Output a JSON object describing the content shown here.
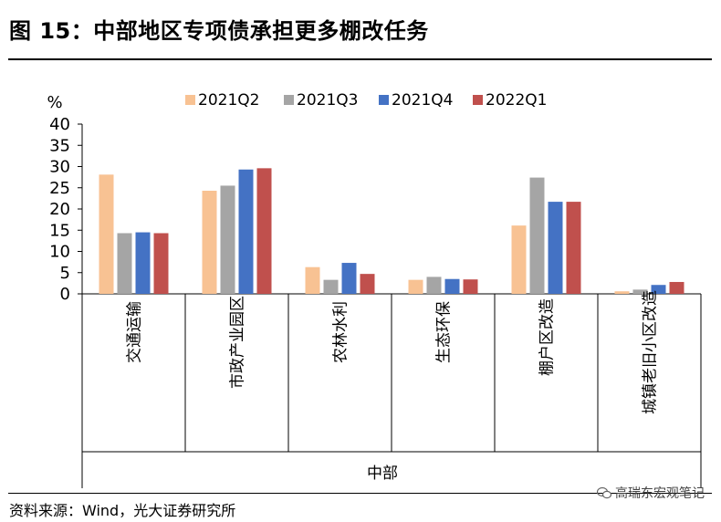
{
  "figure_title": "图 15：中部地区专项债承担更多棚改任务",
  "source_note": "资料来源：Wind，光大证券研究所",
  "watermark": "高瑞东宏观笔记",
  "chart_data": {
    "type": "bar",
    "unit_label": "%",
    "group_label": "中部",
    "categories": [
      "交通运输",
      "市政产业园区",
      "农林水利",
      "生态环保",
      "棚户区改造",
      "城镇老旧小区改造"
    ],
    "series": [
      {
        "name": "2021Q2",
        "color": "#F8C293",
        "values": [
          28.1,
          24.3,
          6.3,
          3.3,
          16.1,
          0.6
        ]
      },
      {
        "name": "2021Q3",
        "color": "#A5A5A5",
        "values": [
          14.3,
          25.5,
          3.3,
          4.0,
          27.4,
          1.0
        ]
      },
      {
        "name": "2021Q4",
        "color": "#4472C4",
        "values": [
          14.5,
          29.3,
          7.3,
          3.5,
          21.7,
          2.1
        ]
      },
      {
        "name": "2022Q1",
        "color": "#C0504D",
        "values": [
          14.3,
          29.6,
          4.7,
          3.4,
          21.7,
          2.8
        ]
      }
    ],
    "ylim": [
      0,
      40
    ],
    "yticks": [
      0,
      5,
      10,
      15,
      20,
      25,
      30,
      35,
      40
    ],
    "legend_position": "top",
    "grid": false
  }
}
